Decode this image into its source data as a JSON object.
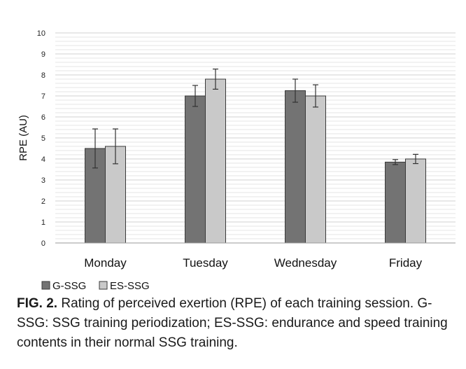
{
  "chart_data": {
    "type": "bar",
    "categories": [
      "Monday",
      "Tuesday",
      "Wednesday",
      "Friday"
    ],
    "series": [
      {
        "name": "G-SSG",
        "color": "#737373",
        "values": [
          4.5,
          7.0,
          7.25,
          3.85
        ],
        "error": [
          0.93,
          0.5,
          0.55,
          0.12
        ]
      },
      {
        "name": "ES-SSG",
        "color": "#c9c9c9",
        "values": [
          4.6,
          7.8,
          7.0,
          4.0
        ],
        "error": [
          0.83,
          0.48,
          0.53,
          0.22
        ]
      }
    ],
    "ylabel": "RPE (AU)",
    "xlabel": "",
    "ylim": [
      0,
      10
    ],
    "yticks": [
      "0",
      "1",
      "2",
      "3",
      "4",
      "5",
      "6",
      "7",
      "8",
      "9",
      "10"
    ],
    "grid": true,
    "legend_position": "bottom-left"
  },
  "caption": {
    "label": "FIG. 2.",
    "text": "Rating of perceived exertion (RPE) of each training session. G-SSG: SSG training periodization; ES-SSG: endurance and speed training contents in their normal SSG training."
  }
}
